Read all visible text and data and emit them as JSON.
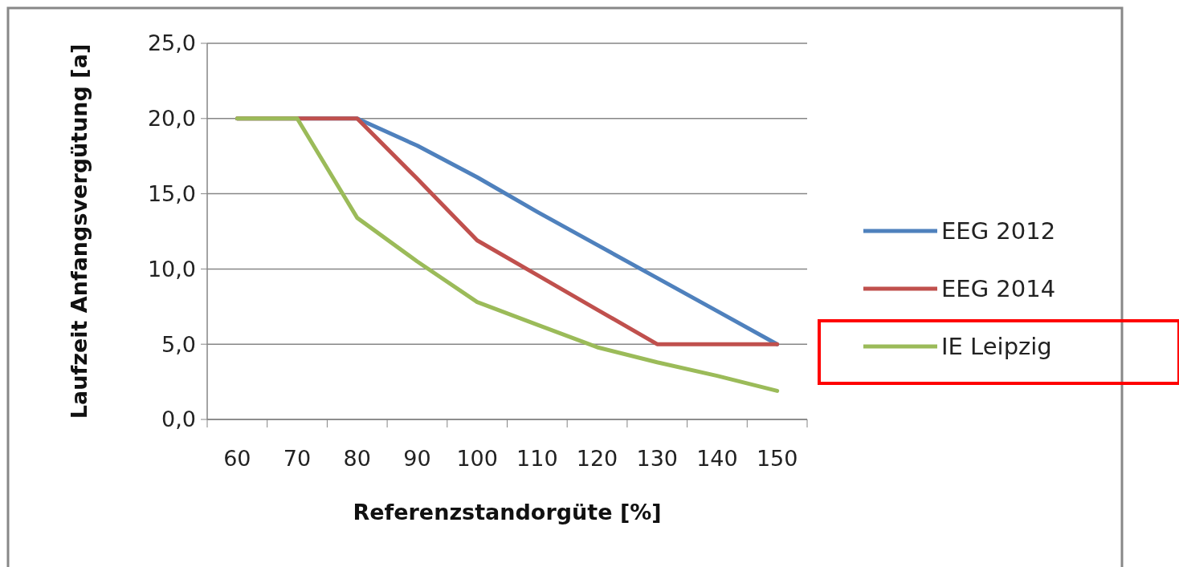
{
  "chart_data": {
    "type": "line",
    "xlabel": "Referenzstandorgüte [%]",
    "ylabel": "Laufzeit Anfangsvergütung [a]",
    "categories": [
      "60",
      "70",
      "80",
      "90",
      "100",
      "110",
      "120",
      "130",
      "140",
      "150"
    ],
    "series": [
      {
        "name": "EEG 2012",
        "color": "#4f81bd",
        "values": [
          20,
          20,
          20,
          18.2,
          16.1,
          13.8,
          11.6,
          9.4,
          7.2,
          5.0
        ]
      },
      {
        "name": "EEG 2014",
        "color": "#c0504d",
        "values": [
          20,
          20,
          20,
          16.0,
          11.9,
          9.6,
          7.3,
          5.0,
          5.0,
          5.0
        ]
      },
      {
        "name": "IE Leipzig",
        "color": "#9bbb59",
        "values": [
          20,
          20,
          13.4,
          10.5,
          7.8,
          6.3,
          4.8,
          3.8,
          2.9,
          1.9
        ]
      }
    ],
    "ylim": [
      0,
      25
    ],
    "yticks": [
      {
        "value": 0,
        "label": "0,0"
      },
      {
        "value": 5,
        "label": "5,0"
      },
      {
        "value": 10,
        "label": "10,0"
      },
      {
        "value": 15,
        "label": "15,0"
      },
      {
        "value": 20,
        "label": "20,0"
      },
      {
        "value": 25,
        "label": "25,0"
      }
    ],
    "grid": "y",
    "legend": "right",
    "marker": "none",
    "line_style": "solid"
  }
}
